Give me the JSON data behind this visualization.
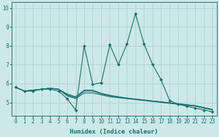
{
  "xlabel": "Humidex (Indice chaleur)",
  "xlim": [
    -0.5,
    23.5
  ],
  "ylim": [
    4.3,
    10.3
  ],
  "yticks": [
    5,
    6,
    7,
    8,
    9,
    10
  ],
  "xticks": [
    0,
    1,
    2,
    3,
    4,
    5,
    6,
    7,
    8,
    9,
    10,
    11,
    12,
    13,
    14,
    15,
    16,
    17,
    18,
    19,
    20,
    21,
    22,
    23
  ],
  "bg_color": "#cce8e8",
  "grid_color": "#b0d0d0",
  "line_color": "#1a7070",
  "series": [
    {
      "x": [
        0,
        1,
        2,
        3,
        4,
        5,
        6,
        7,
        8,
        9,
        10,
        11,
        12,
        13,
        14,
        15,
        16,
        17,
        18,
        19,
        20,
        21,
        22,
        23
      ],
      "y": [
        5.8,
        5.6,
        5.6,
        5.7,
        5.7,
        5.6,
        5.2,
        4.6,
        8.0,
        5.95,
        6.05,
        8.05,
        7.0,
        8.1,
        9.7,
        8.1,
        7.0,
        6.2,
        5.1,
        4.9,
        4.8,
        4.7,
        4.6,
        4.5
      ],
      "marker": "D",
      "markersize": 2.0
    },
    {
      "x": [
        0,
        1,
        2,
        3,
        4,
        5,
        6,
        7,
        8,
        9,
        10,
        11,
        12,
        13,
        14,
        15,
        16,
        17,
        18,
        19,
        20,
        21,
        22,
        23
      ],
      "y": [
        5.8,
        5.6,
        5.65,
        5.7,
        5.75,
        5.7,
        5.35,
        5.2,
        5.5,
        5.5,
        5.4,
        5.3,
        5.25,
        5.2,
        5.15,
        5.1,
        5.05,
        5.0,
        4.95,
        4.9,
        4.85,
        4.8,
        4.7,
        4.6
      ],
      "marker": null,
      "markersize": 0
    },
    {
      "x": [
        0,
        1,
        2,
        3,
        4,
        5,
        6,
        7,
        8,
        9,
        10,
        11,
        12,
        13,
        14,
        15,
        16,
        17,
        18,
        19,
        20,
        21,
        22,
        23
      ],
      "y": [
        5.8,
        5.6,
        5.65,
        5.7,
        5.75,
        5.7,
        5.4,
        5.25,
        5.6,
        5.6,
        5.45,
        5.35,
        5.28,
        5.22,
        5.17,
        5.12,
        5.07,
        5.02,
        4.97,
        4.92,
        4.87,
        4.82,
        4.72,
        4.62
      ],
      "marker": null,
      "markersize": 0
    },
    {
      "x": [
        0,
        1,
        2,
        3,
        4,
        5,
        6,
        7,
        8,
        9,
        10,
        11,
        12,
        13,
        14,
        15,
        16,
        17,
        18,
        19,
        20,
        21,
        22,
        23
      ],
      "y": [
        5.8,
        5.6,
        5.65,
        5.7,
        5.75,
        5.7,
        5.45,
        5.3,
        5.65,
        5.65,
        5.48,
        5.38,
        5.3,
        5.23,
        5.18,
        5.13,
        5.08,
        5.03,
        4.98,
        4.93,
        4.88,
        4.83,
        4.73,
        4.63
      ],
      "marker": null,
      "markersize": 0
    }
  ]
}
